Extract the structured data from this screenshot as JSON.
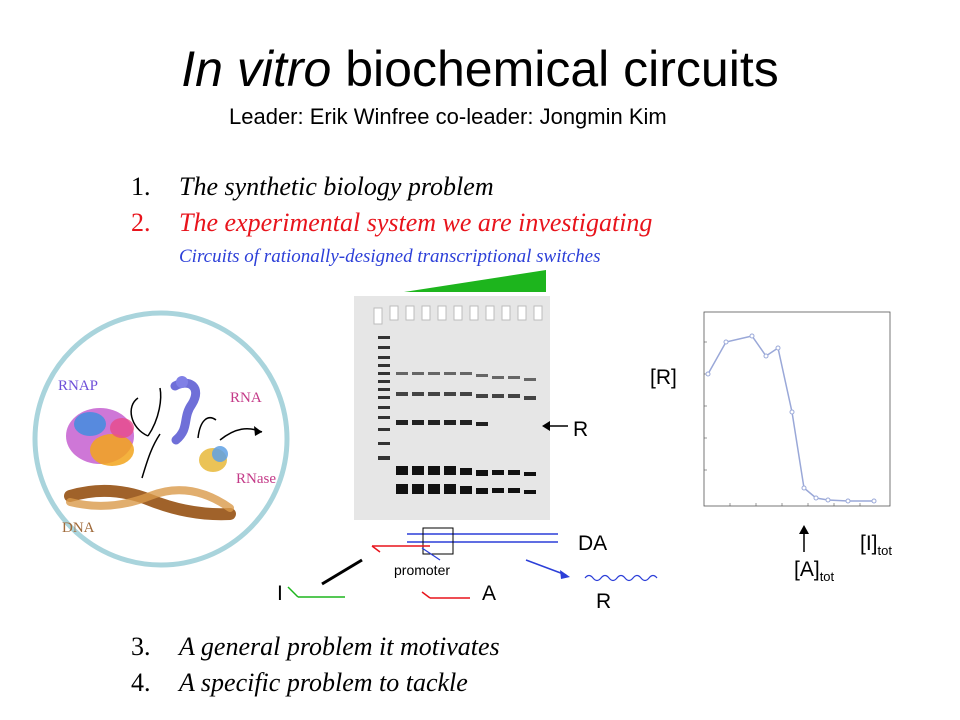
{
  "title": {
    "italic": "In vitro",
    "rest": " biochemical circuits"
  },
  "subtitle": "Leader: Erik Winfree   co-leader: Jongmin Kim",
  "outline": [
    {
      "num": "1.",
      "text": "The synthetic biology problem"
    },
    {
      "num": "2.",
      "text": "The experimental system we are investigating"
    },
    {
      "num": "3.",
      "text": "A general problem it motivates"
    },
    {
      "num": "4.",
      "text": "A specific problem to tackle"
    }
  ],
  "outline_sub": "Circuits of rationally-designed transcriptional switches",
  "cell_labels": {
    "rnap": "RNAP",
    "rna": "RNA",
    "rnase": "RNase",
    "dna": "DNA"
  },
  "gel": {
    "band_label": "R"
  },
  "circuit": {
    "da": "DA",
    "i": "I",
    "a": "A",
    "r": "R",
    "promoter": "promoter"
  },
  "plot": {
    "y_label": "[R]",
    "x_label_main": "[I]",
    "x_label_sub": "tot",
    "marker_label_main": "[A]",
    "marker_label_sub": "tot"
  },
  "colors": {
    "red": "#e8141c",
    "blue": "#2c3fd8",
    "green": "#1db51d",
    "cell_border": "#a9d4dc"
  }
}
